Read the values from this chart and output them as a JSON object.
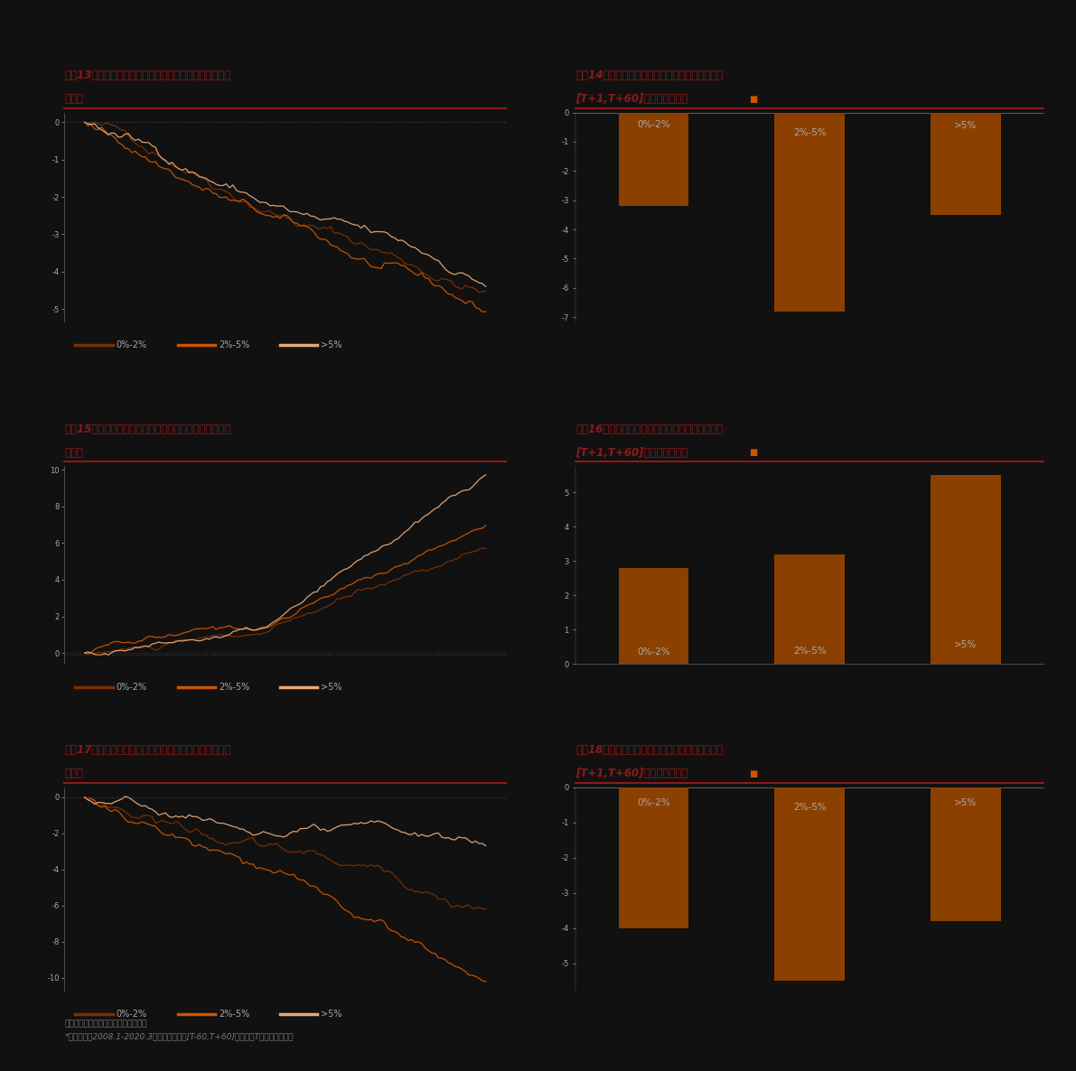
{
  "background_color": "#111111",
  "title_color": "#8B1A1A",
  "line_color_dark": "#7B3000",
  "line_color_mid": "#CC5500",
  "line_color_light": "#E8A878",
  "bar_color": "#8B4000",
  "separator_color": "#8B1A1A",
  "text_color": "#AAAAAA",
  "axis_color": "#666666",
  "dotted_color": "#444444",
  "marker_color": "#CC5500",
  "chart14_values": [
    -3.2,
    -6.8,
    -3.5
  ],
  "chart16_values": [
    2.8,
    3.2,
    5.5
  ],
  "chart18_values": [
    -4.0,
    -5.5,
    -3.8
  ],
  "bar_categories": [
    "0%-2%",
    "2%-5%",
    ">5%"
  ],
  "title13_line1": "图表13：不同公募持仓比例的个股发布业绩坏消息累计超",
  "title13_line2": "额收益",
  "title14_line1": "图表14：不同公募持仓比例的个股发布业绩坏消息",
  "title14_line2": "[T+1,T+60]日累计超额收益",
  "title15_line1": "图表15：不同外资持仓比例的个股发布业绩好消息累计超",
  "title15_line2": "额收益",
  "title16_line1": "图表16：不同外资持仓比例的个股发布业绩好消息",
  "title16_line2": "[T+1,T+60]日累计超额收益",
  "title17_line1": "图表17：不同外资持仓比例的个股发布业绩坏消息累计超",
  "title17_line2": "额收益",
  "title18_line1": "图表18：不同外资持仓比例的个股发布业绩坏消息",
  "title18_line2": "[T+1,T+60]日累计超额收益",
  "footnote_line1": "资料来源：万得资讯，中金公司研究部",
  "footnote_line2": "*时间区间为2008.1-2020.3，业绩窗口期为[T-60,T+60]交易日，T为业绩发布当日",
  "legend_labels": [
    "0%-2%",
    "2%-5%",
    ">5%"
  ]
}
